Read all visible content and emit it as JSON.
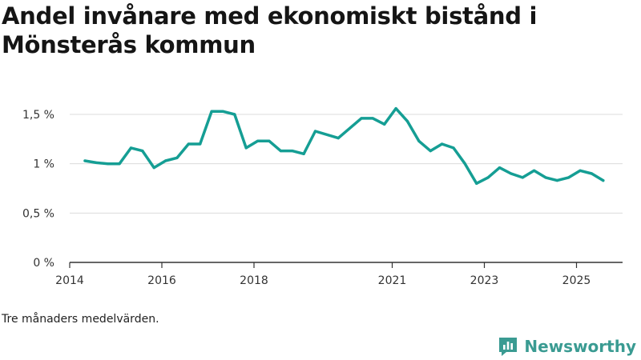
{
  "page": {
    "title": "Andel invånare med ekonomiskt bistånd i Mönsterås kommun",
    "note": "Tre månaders medelvärden.",
    "brand": "Newsworthy"
  },
  "colors": {
    "line": "#159e94",
    "grid": "#dcdcdc",
    "axis": "#333333",
    "brand": "#3a9b92"
  },
  "chart_data": {
    "type": "line",
    "title": "Andel invånare med ekonomiskt bistånd i Mönsterås kommun",
    "xlabel": "",
    "ylabel": "",
    "xlim": [
      2014.0,
      2026.0
    ],
    "ylim": [
      0,
      1.5
    ],
    "y_ticks": [
      {
        "value": 0,
        "label": "0 %"
      },
      {
        "value": 0.5,
        "label": "0,5 %"
      },
      {
        "value": 1,
        "label": "1 %"
      },
      {
        "value": 1.5,
        "label": "1,5 %"
      }
    ],
    "x_ticks": [
      {
        "value": 2014.0,
        "label": "2014"
      },
      {
        "value": 2016.0,
        "label": "2016"
      },
      {
        "value": 2018.0,
        "label": "2018"
      },
      {
        "value": 2021.0,
        "label": "2021"
      },
      {
        "value": 2023.0,
        "label": "2023"
      },
      {
        "value": 2025.0,
        "label": "2025"
      }
    ],
    "series": [
      {
        "name": "Andel invånare med ekonomiskt bistånd",
        "x": [
          2014.33,
          2014.58,
          2014.83,
          2015.08,
          2015.33,
          2015.58,
          2015.83,
          2016.08,
          2016.33,
          2016.58,
          2016.83,
          2017.08,
          2017.33,
          2017.58,
          2017.83,
          2018.08,
          2018.33,
          2018.58,
          2018.83,
          2019.08,
          2019.33,
          2019.83,
          2020.33,
          2020.58,
          2020.83,
          2021.08,
          2021.33,
          2021.58,
          2021.83,
          2022.08,
          2022.33,
          2022.58,
          2022.83,
          2023.08,
          2023.33,
          2023.58,
          2023.83,
          2024.08,
          2024.33,
          2024.58,
          2024.83,
          2025.08,
          2025.33,
          2025.58
        ],
        "values": [
          1.03,
          1.01,
          1.0,
          1.0,
          1.16,
          1.13,
          0.96,
          1.03,
          1.06,
          1.2,
          1.2,
          1.53,
          1.53,
          1.5,
          1.16,
          1.23,
          1.23,
          1.13,
          1.13,
          1.1,
          1.33,
          1.26,
          1.46,
          1.46,
          1.4,
          1.56,
          1.43,
          1.23,
          1.13,
          1.2,
          1.16,
          1.0,
          0.8,
          0.86,
          0.96,
          0.9,
          0.86,
          0.93,
          0.86,
          0.83,
          0.86,
          0.93,
          0.9,
          0.83
        ]
      }
    ]
  }
}
